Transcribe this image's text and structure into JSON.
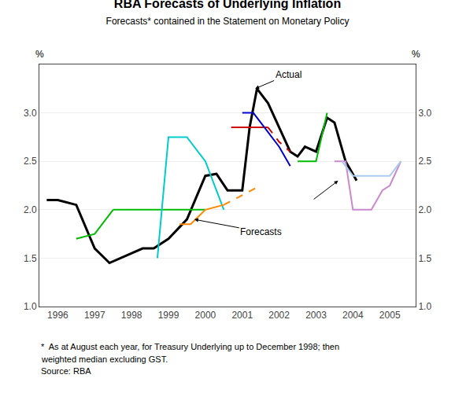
{
  "chart_data": {
    "type": "line",
    "title": "RBA Forecasts of Underlying Inflation",
    "subtitle": "Forecasts* contained in the Statement on Monetary Policy",
    "footnotes": [
      "*  As at August each year, for Treasury Underlying up to December 1998; then",
      "weighted median excluding GST.",
      "Source: RBA"
    ],
    "ylabel": "%",
    "y2label": "%",
    "xlim": [
      1995.5,
      2005.7
    ],
    "xticks": [
      1996,
      1997,
      1998,
      1999,
      2000,
      2001,
      2002,
      2003,
      2004,
      2005
    ],
    "ylim": [
      1.0,
      3.5
    ],
    "yticks": [
      {
        "value": 1.0,
        "label": "1.0"
      },
      {
        "value": 1.5,
        "label": "1.5"
      },
      {
        "value": 2.0,
        "label": "2.0"
      },
      {
        "value": 2.5,
        "label": "2.5"
      },
      {
        "value": 3.0,
        "label": "3.0"
      }
    ],
    "y2lim": [
      1.0,
      3.5
    ],
    "y2ticks": [
      {
        "value": 1.0,
        "label": "1.0"
      },
      {
        "value": 1.5,
        "label": "1.5"
      },
      {
        "value": 2.0,
        "label": "2.0"
      },
      {
        "value": 2.5,
        "label": "2.5"
      },
      {
        "value": 3.0,
        "label": "3.0"
      }
    ],
    "grid": "y",
    "series": [
      {
        "color": "#000000",
        "line_style": "solid",
        "x": [
          1995.7,
          1996.0,
          1996.5,
          1997.0,
          1997.4,
          1997.7,
          1998.0,
          1998.3,
          1998.6,
          1999.0,
          1999.5,
          2000.0,
          2000.3,
          2000.6,
          2001.0,
          2001.2,
          2001.4,
          2001.7,
          2002.0,
          2002.3,
          2002.5,
          2002.7,
          2003.0,
          2003.3,
          2003.5,
          2003.8,
          2004.1
        ],
        "values": [
          2.1,
          2.1,
          2.05,
          1.6,
          1.45,
          1.5,
          1.55,
          1.6,
          1.6,
          1.7,
          1.9,
          2.35,
          2.37,
          2.2,
          2.2,
          2.85,
          3.25,
          3.1,
          2.85,
          2.6,
          2.55,
          2.65,
          2.6,
          2.95,
          2.9,
          2.5,
          2.3
        ]
      },
      {
        "color": "#00bb00",
        "line_style": "solid",
        "x": [
          1996.5,
          1997.0,
          1997.5
        ],
        "values": [
          1.7,
          1.75,
          2.0
        ]
      },
      {
        "color": "#00bb00",
        "line_style": "solid",
        "x": [
          1997.5,
          1998.0,
          1998.5,
          1999.0,
          1999.5,
          2000.0
        ],
        "values": [
          2.0,
          2.0,
          2.0,
          2.0,
          2.0,
          2.0
        ]
      },
      {
        "color": "#00bb00",
        "line_style": "solid",
        "x": [
          2002.5,
          2003.0,
          2003.3
        ],
        "values": [
          2.5,
          2.5,
          3.0
        ]
      },
      {
        "color": "#00cccc",
        "line_style": "solid",
        "x": [
          1998.7,
          1999.0,
          1999.5,
          2000.0,
          2000.5
        ],
        "values": [
          1.5,
          2.75,
          2.75,
          2.5,
          2.0
        ]
      },
      {
        "color": "#ff8800",
        "line_style": "solid",
        "x": [
          1999.3,
          1999.6,
          2000.0,
          2000.5
        ],
        "values": [
          1.85,
          1.85,
          2.0,
          2.05
        ]
      },
      {
        "color": "#ff8800",
        "line_style": "dashed",
        "x": [
          2000.5,
          2001.0,
          2001.5
        ],
        "values": [
          2.05,
          2.15,
          2.25
        ]
      },
      {
        "color": "#cc0000",
        "line_style": "solid",
        "x": [
          2000.7,
          2001.0,
          2001.5,
          2001.7
        ],
        "values": [
          2.85,
          2.85,
          2.85,
          2.85
        ]
      },
      {
        "color": "#cc0000",
        "line_style": "dashed",
        "x": [
          2001.7,
          2002.0,
          2002.3
        ],
        "values": [
          2.85,
          2.7,
          2.6
        ]
      },
      {
        "color": "#0000cc",
        "line_style": "solid",
        "x": [
          2001.0,
          2001.3,
          2001.5,
          2001.8,
          2002.0,
          2002.3
        ],
        "values": [
          3.0,
          3.0,
          2.9,
          2.75,
          2.65,
          2.45
        ]
      },
      {
        "color": "#cc88cc",
        "line_style": "solid",
        "x": [
          2003.5,
          2003.8,
          2004.0,
          2004.5,
          2004.8,
          2005.0,
          2005.3
        ],
        "values": [
          2.5,
          2.5,
          2.0,
          2.0,
          2.2,
          2.25,
          2.5
        ]
      },
      {
        "color": "#aaccee",
        "line_style": "solid",
        "x": [
          2003.7,
          2004.0,
          2004.5,
          2004.8,
          2005.0,
          2005.3
        ],
        "values": [
          2.5,
          2.35,
          2.35,
          2.35,
          2.35,
          2.5
        ]
      }
    ],
    "annotations": [
      {
        "text": "Actual",
        "x": 2001.35,
        "y": 3.25
      },
      {
        "text": "Forecasts",
        "x": 1999.7,
        "y": 1.9
      },
      {
        "x": 2003.6,
        "y": 2.3
      }
    ]
  }
}
